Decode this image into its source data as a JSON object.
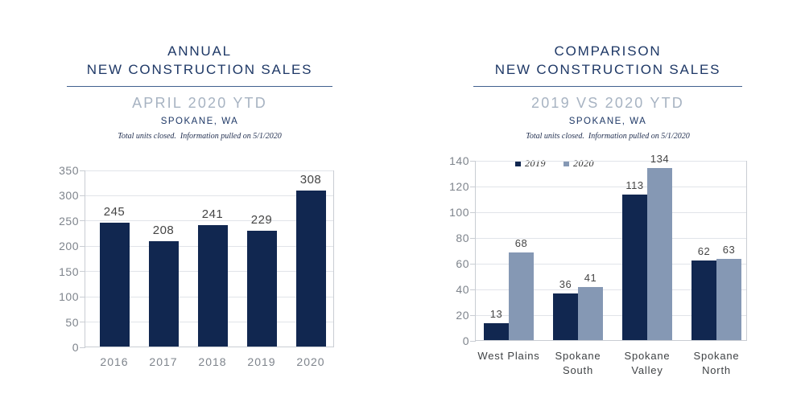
{
  "page_title": "New Construction Sales Report - Spokane, WA",
  "colors": {
    "title_navy": "#1e3866",
    "bar_navy": "#112750",
    "bar_bluegray": "#8598b4",
    "subtitle_gray": "#a7b3c2",
    "divider_blue": "#41608f",
    "gridline": "#e1e4e9",
    "axis_line": "#c9cdd3",
    "tick_text": "#7e848c",
    "value_text": "#454545",
    "category_text": "#3f4245",
    "note_text": "#1f2d4e"
  },
  "chart_data": [
    {
      "type": "bar",
      "title": "ANNUAL NEW CONSTRUCTION SALES",
      "title_lines": [
        "ANNUAL",
        "NEW CONSTRUCTION SALES"
      ],
      "subtitle": "APRIL 2020 YTD",
      "location": "SPOKANE, WA",
      "note": "Total units closed.  Information pulled on 5/1/2020",
      "categories": [
        "2016",
        "2017",
        "2018",
        "2019",
        "2020"
      ],
      "values": [
        245,
        208,
        241,
        229,
        308
      ],
      "ylim": [
        0,
        350
      ],
      "yticks": [
        0,
        50,
        100,
        150,
        200,
        250,
        300,
        350
      ],
      "xlabel": "",
      "ylabel": "",
      "grid": "horizontal",
      "legend_position": "none",
      "bar_color": "#112750"
    },
    {
      "type": "bar",
      "title": "COMPARISON NEW CONSTRUCTION SALES",
      "title_lines": [
        "COMPARISON",
        "NEW CONSTRUCTION SALES"
      ],
      "subtitle": "2019 VS 2020 YTD",
      "location": "SPOKANE, WA",
      "note": "Total units closed.  Information pulled on 5/1/2020",
      "categories": [
        "West Plains",
        "Spokane South",
        "Spokane Valley",
        "Spokane North"
      ],
      "category_lines": [
        [
          "West Plains"
        ],
        [
          "Spokane",
          "South"
        ],
        [
          "Spokane",
          "Valley"
        ],
        [
          "Spokane",
          "North"
        ]
      ],
      "series": [
        {
          "name": "2019",
          "values": [
            13,
            36,
            113,
            62
          ],
          "color": "#112750"
        },
        {
          "name": "2020",
          "values": [
            68,
            41,
            134,
            63
          ],
          "color": "#8598b4"
        }
      ],
      "ylim": [
        0,
        140
      ],
      "yticks": [
        0,
        20,
        40,
        60,
        80,
        100,
        120,
        140
      ],
      "xlabel": "",
      "ylabel": "",
      "grid": "horizontal",
      "legend_position": "top"
    }
  ]
}
